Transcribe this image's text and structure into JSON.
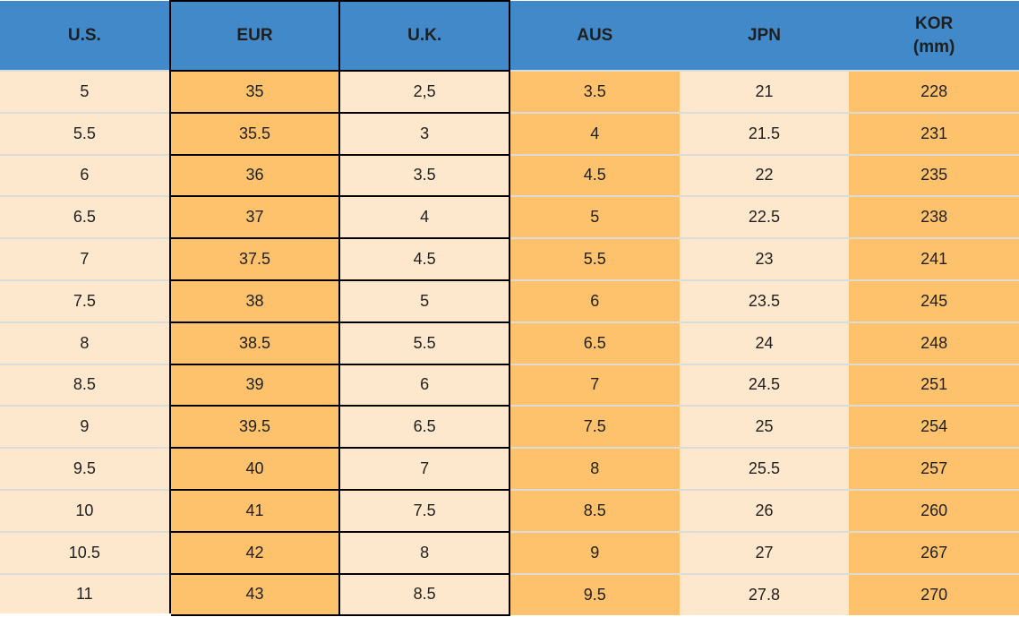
{
  "colors": {
    "header_bg": "#4189c8",
    "orange_cell": "#fdc26b",
    "cream_cell": "#fde8cd",
    "box_border": "#000000",
    "row_separator": "#dbdbd8",
    "text": "#1f1f1f"
  },
  "chart_data": {
    "type": "table",
    "columns": [
      {
        "key": "us",
        "label": "U.S.",
        "tone": "cream",
        "boxed": false
      },
      {
        "key": "eur",
        "label": "EUR",
        "tone": "orange",
        "boxed": true
      },
      {
        "key": "uk",
        "label": "U.K.",
        "tone": "cream",
        "boxed": true
      },
      {
        "key": "aus",
        "label": "AUS",
        "tone": "orange",
        "boxed": false
      },
      {
        "key": "jpn",
        "label": "JPN",
        "tone": "cream",
        "boxed": false
      },
      {
        "key": "kor",
        "label": "KOR",
        "sublabel": "(mm)",
        "tone": "orange",
        "boxed": false
      }
    ],
    "rows": [
      [
        "5",
        "35",
        "2,5",
        "3.5",
        "21",
        "228"
      ],
      [
        "5.5",
        "35.5",
        "3",
        "4",
        "21.5",
        "231"
      ],
      [
        "6",
        "36",
        "3.5",
        "4.5",
        "22",
        "235"
      ],
      [
        "6.5",
        "37",
        "4",
        "5",
        "22.5",
        "238"
      ],
      [
        "7",
        "37.5",
        "4.5",
        "5.5",
        "23",
        "241"
      ],
      [
        "7.5",
        "38",
        "5",
        "6",
        "23.5",
        "245"
      ],
      [
        "8",
        "38.5",
        "5.5",
        "6.5",
        "24",
        "248"
      ],
      [
        "8.5",
        "39",
        "6",
        "7",
        "24.5",
        "251"
      ],
      [
        "9",
        "39.5",
        "6.5",
        "7.5",
        "25",
        "254"
      ],
      [
        "9.5",
        "40",
        "7",
        "8",
        "25.5",
        "257"
      ],
      [
        "10",
        "41",
        "7.5",
        "8.5",
        "26",
        "260"
      ],
      [
        "10.5",
        "42",
        "8",
        "9",
        "27",
        "267"
      ],
      [
        "11",
        "43",
        "8.5",
        "9.5",
        "27.8",
        "270"
      ]
    ]
  }
}
